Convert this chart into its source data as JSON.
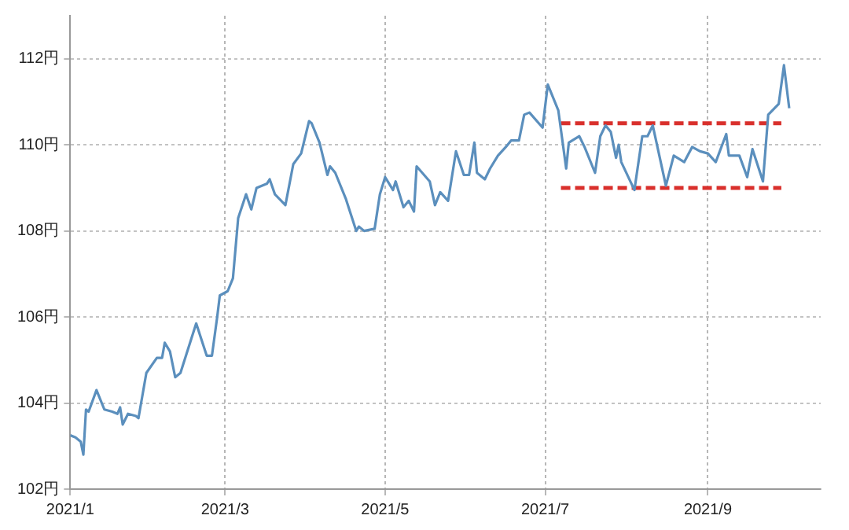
{
  "chart_data": {
    "type": "line",
    "xlim": [
      "2021-01-01",
      "2021-10-14"
    ],
    "xticks": [
      {
        "value": "2021-01-01",
        "label": "2021/1"
      },
      {
        "value": "2021-03-01",
        "label": "2021/3"
      },
      {
        "value": "2021-05-01",
        "label": "2021/5"
      },
      {
        "value": "2021-07-01",
        "label": "2021/7"
      },
      {
        "value": "2021-09-01",
        "label": "2021/9"
      }
    ],
    "ylim": [
      102,
      113
    ],
    "yticks": [
      {
        "value": 102,
        "label": "102円"
      },
      {
        "value": 104,
        "label": "104円"
      },
      {
        "value": 106,
        "label": "106円"
      },
      {
        "value": 108,
        "label": "108円"
      },
      {
        "value": 110,
        "label": "110円"
      },
      {
        "value": 112,
        "label": "112円"
      }
    ],
    "grid": true,
    "legend": false,
    "marker": "none",
    "series": [
      {
        "color": "#5b8fbd",
        "line_style": "solid",
        "x": [
          "2021-01-01",
          "2021-01-03",
          "2021-01-05",
          "2021-01-06",
          "2021-01-07",
          "2021-01-08",
          "2021-01-11",
          "2021-01-14",
          "2021-01-17",
          "2021-01-19",
          "2021-01-20",
          "2021-01-21",
          "2021-01-23",
          "2021-01-26",
          "2021-01-27",
          "2021-01-30",
          "2021-02-03",
          "2021-02-05",
          "2021-02-06",
          "2021-02-08",
          "2021-02-10",
          "2021-02-12",
          "2021-02-18",
          "2021-02-22",
          "2021-02-24",
          "2021-02-26",
          "2021-02-27",
          "2021-03-02",
          "2021-03-04",
          "2021-03-06",
          "2021-03-09",
          "2021-03-11",
          "2021-03-13",
          "2021-03-17",
          "2021-03-18",
          "2021-03-20",
          "2021-03-24",
          "2021-03-27",
          "2021-03-30",
          "2021-04-02",
          "2021-04-03",
          "2021-04-06",
          "2021-04-09",
          "2021-04-10",
          "2021-04-12",
          "2021-04-16",
          "2021-04-20",
          "2021-04-21",
          "2021-04-23",
          "2021-04-27",
          "2021-04-29",
          "2021-05-01",
          "2021-05-04",
          "2021-05-05",
          "2021-05-08",
          "2021-05-10",
          "2021-05-12",
          "2021-05-13",
          "2021-05-18",
          "2021-05-20",
          "2021-05-22",
          "2021-05-25",
          "2021-05-28",
          "2021-05-31",
          "2021-06-02",
          "2021-06-04",
          "2021-06-05",
          "2021-06-08",
          "2021-06-10",
          "2021-06-13",
          "2021-06-16",
          "2021-06-18",
          "2021-06-21",
          "2021-06-23",
          "2021-06-25",
          "2021-06-30",
          "2021-07-02",
          "2021-07-06",
          "2021-07-09",
          "2021-07-10",
          "2021-07-14",
          "2021-07-16",
          "2021-07-20",
          "2021-07-22",
          "2021-07-24",
          "2021-07-26",
          "2021-07-28",
          "2021-07-29",
          "2021-07-30",
          "2021-08-04",
          "2021-08-07",
          "2021-08-09",
          "2021-08-11",
          "2021-08-16",
          "2021-08-19",
          "2021-08-23",
          "2021-08-26",
          "2021-08-29",
          "2021-09-01",
          "2021-09-04",
          "2021-09-08",
          "2021-09-09",
          "2021-09-13",
          "2021-09-16",
          "2021-09-18",
          "2021-09-22",
          "2021-09-24",
          "2021-09-28",
          "2021-09-30",
          "2021-10-02"
        ],
        "values": [
          103.25,
          103.2,
          103.1,
          102.8,
          103.85,
          103.8,
          104.3,
          103.85,
          103.8,
          103.75,
          103.9,
          103.5,
          103.75,
          103.7,
          103.65,
          104.7,
          105.05,
          105.05,
          105.4,
          105.2,
          104.6,
          104.7,
          105.85,
          105.1,
          105.1,
          106.0,
          106.5,
          106.6,
          106.9,
          108.3,
          108.85,
          108.5,
          109.0,
          109.1,
          109.2,
          108.85,
          108.6,
          109.55,
          109.8,
          110.55,
          110.5,
          110.05,
          109.3,
          109.5,
          109.35,
          108.75,
          108.0,
          108.1,
          108.0,
          108.05,
          108.85,
          109.25,
          108.95,
          109.15,
          108.55,
          108.7,
          108.45,
          109.5,
          109.15,
          108.6,
          108.9,
          108.7,
          109.85,
          109.3,
          109.3,
          110.05,
          109.35,
          109.2,
          109.45,
          109.75,
          109.95,
          110.1,
          110.1,
          110.7,
          110.75,
          110.4,
          111.4,
          110.8,
          109.45,
          110.05,
          110.2,
          109.95,
          109.35,
          110.2,
          110.45,
          110.3,
          109.7,
          110.0,
          109.6,
          108.95,
          110.2,
          110.2,
          110.45,
          109.05,
          109.75,
          109.6,
          109.95,
          109.85,
          109.8,
          109.6,
          110.25,
          109.75,
          109.75,
          109.25,
          109.9,
          109.15,
          110.7,
          110.95,
          111.85,
          110.85
        ]
      },
      {
        "type": "line",
        "color": "#d9302c",
        "line_style": "dashed",
        "x": [
          "2021-07-07",
          "2021-09-29"
        ],
        "values": [
          110.5,
          110.5
        ]
      },
      {
        "type": "line",
        "color": "#d9302c",
        "line_style": "dashed",
        "x": [
          "2021-07-07",
          "2021-09-29"
        ],
        "values": [
          109.0,
          109.0
        ]
      }
    ]
  }
}
